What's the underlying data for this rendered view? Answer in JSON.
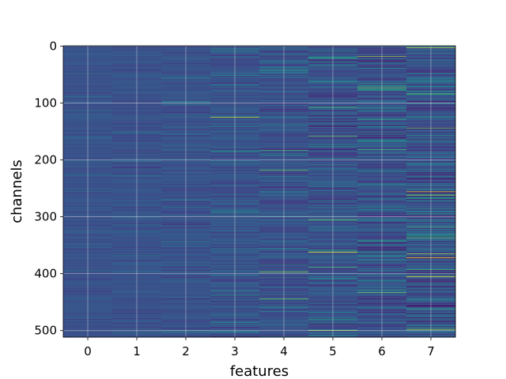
{
  "chart_data": {
    "type": "heatmap",
    "title": "",
    "xlabel": "features",
    "ylabel": "channels",
    "x_categories": [
      "0",
      "1",
      "2",
      "3",
      "4",
      "5",
      "6",
      "7"
    ],
    "y_ticks": [
      0,
      100,
      200,
      300,
      400,
      500
    ],
    "y_range": [
      0,
      512
    ],
    "y_inverted": true,
    "colormap": "viridis",
    "grid": true,
    "column_contrast": [
      0.07,
      0.09,
      0.11,
      0.13,
      0.16,
      0.19,
      0.22,
      0.25
    ],
    "highlights": [
      {
        "feature": 3,
        "channel": 125,
        "value": 0.95
      },
      {
        "feature": 4,
        "channel": 183,
        "value": 0.8
      },
      {
        "feature": 4,
        "channel": 218,
        "value": 0.85
      },
      {
        "feature": 4,
        "channel": 397,
        "value": 0.9
      },
      {
        "feature": 4,
        "channel": 444,
        "value": 0.85
      },
      {
        "feature": 5,
        "channel": 108,
        "value": 0.8
      },
      {
        "feature": 5,
        "channel": 158,
        "value": 0.85
      },
      {
        "feature": 5,
        "channel": 305,
        "value": 0.85
      },
      {
        "feature": 5,
        "channel": 362,
        "value": 1.0
      },
      {
        "feature": 5,
        "channel": 500,
        "value": 0.9
      },
      {
        "feature": 6,
        "channel": 18,
        "value": 0.9
      },
      {
        "feature": 6,
        "channel": 75,
        "value": 0.8
      },
      {
        "feature": 6,
        "channel": 182,
        "value": 0.8
      },
      {
        "feature": 6,
        "channel": 342,
        "value": 0.75
      },
      {
        "feature": 6,
        "channel": 433,
        "value": 0.85
      },
      {
        "feature": 7,
        "channel": 3,
        "value": 0.95
      },
      {
        "feature": 7,
        "channel": 262,
        "value": 0.9
      },
      {
        "feature": 7,
        "channel": 372,
        "value": 1.0
      },
      {
        "feature": 7,
        "channel": 498,
        "value": 0.9
      }
    ]
  }
}
